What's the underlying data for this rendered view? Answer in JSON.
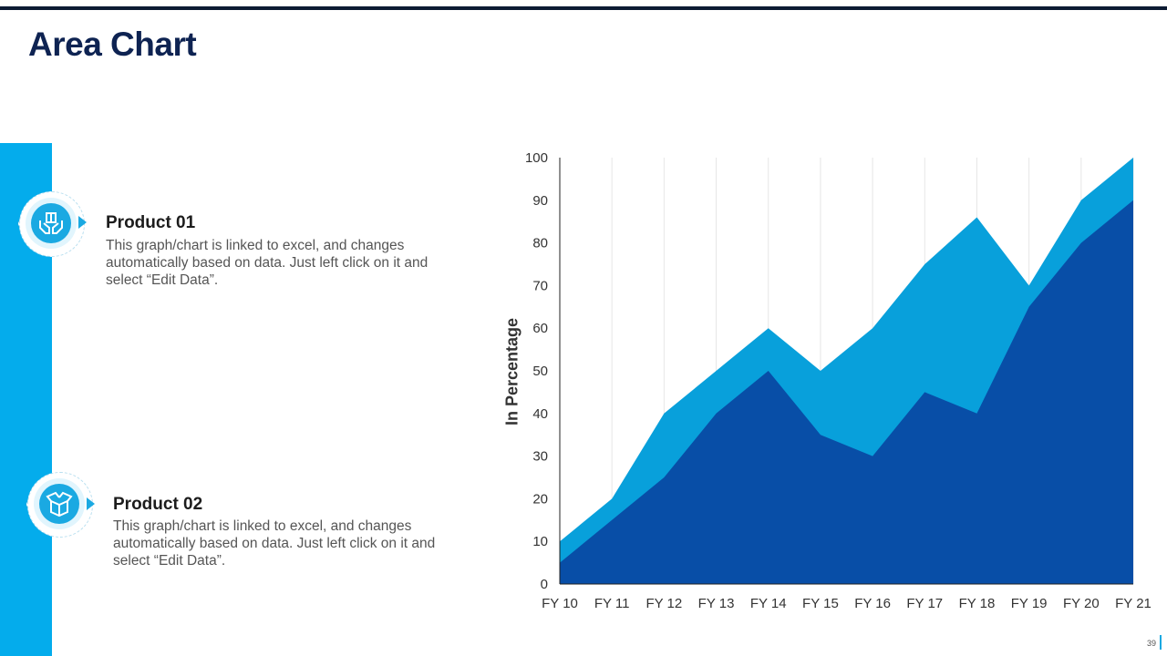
{
  "page": {
    "title": "Area Chart",
    "page_number": "39"
  },
  "products": [
    {
      "title": "Product 01",
      "description": "This graph/chart is linked to excel, and changes automatically based on data. Just left click on it and select “Edit Data”.",
      "icon": "hands-box-icon"
    },
    {
      "title": "Product 02",
      "description": "This graph/chart is linked to excel, and changes automatically based on data. Just left click on it and select “Edit Data”.",
      "icon": "open-box-icon"
    }
  ],
  "colors": {
    "title": "#0e2352",
    "accent": "#04acec",
    "series_light": "#08a0db",
    "series_dark": "#084ea7"
  },
  "chart_data": {
    "type": "area",
    "title": "",
    "xlabel": "",
    "ylabel": "In Percentage",
    "ylim": [
      0,
      100
    ],
    "yticks": [
      0,
      10,
      20,
      30,
      40,
      50,
      60,
      70,
      80,
      90,
      100
    ],
    "categories": [
      "FY 10",
      "FY 11",
      "FY 12",
      "FY 13",
      "FY 14",
      "FY 15",
      "FY 16",
      "FY 17",
      "FY 18",
      "FY 19",
      "FY 20",
      "FY 21"
    ],
    "series": [
      {
        "name": "Product 01",
        "values": [
          10,
          20,
          40,
          50,
          60,
          50,
          60,
          75,
          86,
          70,
          90,
          100
        ]
      },
      {
        "name": "Product 02",
        "values": [
          5,
          15,
          25,
          40,
          50,
          35,
          30,
          45,
          40,
          65,
          80,
          90
        ]
      }
    ],
    "grid": "vertical"
  }
}
